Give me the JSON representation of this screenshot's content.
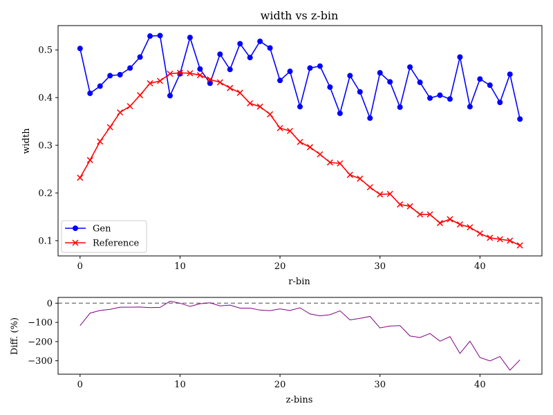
{
  "chart_data": [
    {
      "type": "line",
      "title": "width vs z-bin",
      "xlabel": "r-bin",
      "ylabel": "width",
      "xlim": [
        -2.2,
        46.2
      ],
      "ylim": [
        0.068,
        0.551
      ],
      "x_ticks": [
        0,
        10,
        20,
        30,
        40
      ],
      "y_ticks": [
        0.1,
        0.2,
        0.3,
        0.4,
        0.5
      ],
      "grid": false,
      "legend_position": "lower-left",
      "x": [
        0,
        1,
        2,
        3,
        4,
        5,
        6,
        7,
        8,
        9,
        10,
        11,
        12,
        13,
        14,
        15,
        16,
        17,
        18,
        19,
        20,
        21,
        22,
        23,
        24,
        25,
        26,
        27,
        28,
        29,
        30,
        31,
        32,
        33,
        34,
        35,
        36,
        37,
        38,
        39,
        40,
        41,
        42,
        43,
        44
      ],
      "series": [
        {
          "name": "Gen",
          "color": "#0000ff",
          "marker": "circle",
          "values": [
            0.503,
            0.409,
            0.424,
            0.446,
            0.448,
            0.462,
            0.485,
            0.529,
            0.53,
            0.404,
            0.45,
            0.526,
            0.46,
            0.43,
            0.491,
            0.459,
            0.513,
            0.484,
            0.518,
            0.504,
            0.436,
            0.455,
            0.381,
            0.462,
            0.466,
            0.422,
            0.367,
            0.446,
            0.412,
            0.357,
            0.452,
            0.433,
            0.38,
            0.464,
            0.432,
            0.399,
            0.405,
            0.397,
            0.485,
            0.381,
            0.439,
            0.426,
            0.39,
            0.449,
            0.355
          ]
        },
        {
          "name": "Reference",
          "color": "#ff0000",
          "marker": "x",
          "values": [
            0.232,
            0.269,
            0.308,
            0.338,
            0.369,
            0.382,
            0.405,
            0.43,
            0.435,
            0.45,
            0.452,
            0.451,
            0.447,
            0.438,
            0.432,
            0.42,
            0.41,
            0.388,
            0.381,
            0.365,
            0.336,
            0.33,
            0.307,
            0.296,
            0.281,
            0.264,
            0.262,
            0.238,
            0.23,
            0.212,
            0.197,
            0.198,
            0.176,
            0.172,
            0.155,
            0.155,
            0.137,
            0.145,
            0.134,
            0.128,
            0.115,
            0.106,
            0.103,
            0.1,
            0.09
          ]
        }
      ]
    },
    {
      "type": "line",
      "title": "",
      "xlabel": "z-bins",
      "ylabel": "Diff. (%)",
      "xlim": [
        -2.2,
        46.2
      ],
      "ylim": [
        -370,
        30
      ],
      "x_ticks": [
        0,
        10,
        20,
        30,
        40
      ],
      "y_ticks": [
        0,
        -100,
        -200,
        -300
      ],
      "grid": false,
      "reference_line": 0,
      "reference_line_color": "#808080",
      "x": [
        0,
        1,
        2,
        3,
        4,
        5,
        6,
        7,
        8,
        9,
        10,
        11,
        12,
        13,
        14,
        15,
        16,
        17,
        18,
        19,
        20,
        21,
        22,
        23,
        24,
        25,
        26,
        27,
        28,
        29,
        30,
        31,
        32,
        33,
        34,
        35,
        36,
        37,
        38,
        39,
        40,
        41,
        42,
        43,
        44
      ],
      "series": [
        {
          "color": "#800080",
          "values": [
            -117,
            -52,
            -38,
            -32,
            -21,
            -21,
            -20,
            -23,
            -22,
            10,
            0,
            -17,
            -3,
            2,
            -14,
            -10,
            -26,
            -26,
            -36,
            -39,
            -30,
            -38,
            -24,
            -56,
            -66,
            -60,
            -40,
            -87,
            -79,
            -69,
            -129,
            -119,
            -117,
            -171,
            -179,
            -158,
            -198,
            -174,
            -262,
            -198,
            -283,
            -301,
            -278,
            -349,
            -295
          ]
        }
      ]
    }
  ]
}
